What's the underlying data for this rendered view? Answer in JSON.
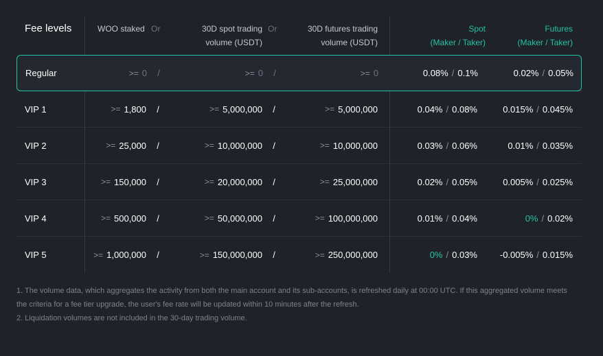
{
  "header": {
    "fee_levels": "Fee levels",
    "woo_staked": "WOO staked",
    "or": "Or",
    "spot_volume": "30D spot trading volume (USDT)",
    "futures_volume": "30D futures trading volume (USDT)",
    "spot": "Spot",
    "spot_sub": "(Maker / Taker)",
    "futures": "Futures",
    "futures_sub": "(Maker / Taker)"
  },
  "ge": ">=",
  "slash": "/",
  "rows": [
    {
      "level": "Regular",
      "woo": "0",
      "spot_vol": "0",
      "fut_vol": "0",
      "spot_maker": "0.08%",
      "spot_taker": "0.1%",
      "fut_maker": "0.02%",
      "fut_taker": "0.05%"
    },
    {
      "level": "VIP 1",
      "woo": "1,800",
      "spot_vol": "5,000,000",
      "fut_vol": "5,000,000",
      "spot_maker": "0.04%",
      "spot_taker": "0.08%",
      "fut_maker": "0.015%",
      "fut_taker": "0.045%"
    },
    {
      "level": "VIP 2",
      "woo": "25,000",
      "spot_vol": "10,000,000",
      "fut_vol": "10,000,000",
      "spot_maker": "0.03%",
      "spot_taker": "0.06%",
      "fut_maker": "0.01%",
      "fut_taker": "0.035%"
    },
    {
      "level": "VIP 3",
      "woo": "150,000",
      "spot_vol": "20,000,000",
      "fut_vol": "25,000,000",
      "spot_maker": "0.02%",
      "spot_taker": "0.05%",
      "fut_maker": "0.005%",
      "fut_taker": "0.025%"
    },
    {
      "level": "VIP 4",
      "woo": "500,000",
      "spot_vol": "50,000,000",
      "fut_vol": "100,000,000",
      "spot_maker": "0.01%",
      "spot_taker": "0.04%",
      "fut_maker": "0%",
      "fut_taker": "0.02%"
    },
    {
      "level": "VIP 5",
      "woo": "1,000,000",
      "spot_vol": "150,000,000",
      "fut_vol": "250,000,000",
      "spot_maker": "0%",
      "spot_taker": "0.03%",
      "fut_maker": "-0.005%",
      "fut_taker": "0.015%"
    }
  ],
  "notes": {
    "note1": "1. The volume data, which aggregates the activity from both the main account and its sub-accounts, is refreshed daily at 00:00 UTC. If this aggregated volume meets the criteria for a fee tier upgrade, the user's fee rate will be updated within 10 minutes after the refresh.",
    "note2": "2. Liquidation volumes are not included in the 30-day trading volume."
  },
  "colors": {
    "accent": "#25c3a5",
    "background": "#1f2229"
  }
}
